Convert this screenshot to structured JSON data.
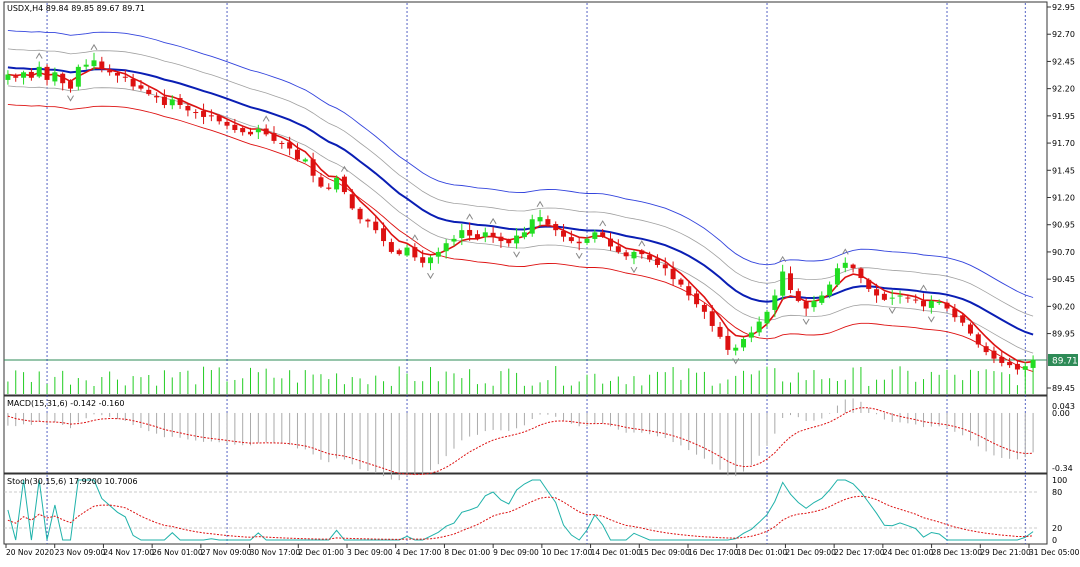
{
  "main_header": "USDX,H4  89.84 89.85 89.67 89.71",
  "macd_header": "MACD(15,31,6) -0.142 -0.160",
  "stoch_header": "Stoch(30,15,6) 17.9200 10.7006",
  "price_badge": "89.71",
  "colors": {
    "bull": "#22dd22",
    "bear": "#dd1111",
    "ema": "#dd1111",
    "mid": "#0a1eb4",
    "outer": "#3344dd",
    "inner": "#a0a0a0",
    "volume": "#22cc22",
    "signal": "#dd1111",
    "stoch_main": "#20b2aa",
    "stoch_signal": "#dd1111",
    "grid": "#2a3bb5"
  },
  "chart_data": [
    {
      "type": "candlestick",
      "symbol": "USDX",
      "timeframe": "H4",
      "ylim": [
        89.45,
        92.95
      ],
      "y_ticks": [
        "92.95",
        "92.70",
        "92.45",
        "92.20",
        "91.95",
        "91.70",
        "91.45",
        "91.20",
        "90.95",
        "90.70",
        "90.45",
        "90.20",
        "89.95",
        "89.71",
        "89.45"
      ],
      "x_ticks": [
        "20 Nov 2020",
        "23 Nov 09:00",
        "24 Nov 17:00",
        "26 Nov 01:00",
        "27 Nov 09:00",
        "30 Nov 17:00",
        "2 Dec 01:00",
        "3 Dec 09:00",
        "4 Dec 17:00",
        "8 Dec 01:00",
        "9 Dec 09:00",
        "10 Dec 17:00",
        "14 Dec 01:00",
        "15 Dec 09:00",
        "16 Dec 17:00",
        "18 Dec 01:00",
        "21 Dec 09:00",
        "22 Dec 17:00",
        "24 Dec 01:00",
        "28 Dec 13:00",
        "29 Dec 21:00",
        "31 Dec 05:00"
      ],
      "close_path": [
        92.33,
        92.3,
        92.35,
        92.3,
        92.4,
        92.28,
        92.35,
        92.25,
        92.2,
        92.4,
        92.42,
        92.46,
        92.38,
        92.35,
        92.32,
        92.3,
        92.22,
        92.2,
        92.15,
        92.12,
        92.05,
        92.1,
        92.05,
        92.0,
        91.98,
        91.94,
        91.95,
        91.9,
        91.86,
        91.82,
        91.8,
        91.78,
        91.83,
        91.78,
        91.72,
        91.7,
        91.65,
        91.55,
        91.55,
        91.4,
        91.3,
        91.28,
        91.38,
        91.25,
        91.1,
        91.0,
        90.98,
        90.9,
        90.8,
        90.7,
        90.68,
        90.74,
        90.65,
        90.6,
        90.65,
        90.7,
        90.78,
        90.82,
        90.9,
        90.85,
        90.82,
        90.88,
        90.84,
        90.8,
        90.78,
        90.85,
        90.88,
        91.0,
        91.02,
        90.95,
        90.9,
        90.84,
        90.8,
        90.78,
        90.82,
        90.88,
        90.84,
        90.75,
        90.7,
        90.66,
        90.7,
        90.68,
        90.63,
        90.58,
        90.55,
        90.45,
        90.4,
        90.3,
        90.22,
        90.15,
        90.02,
        89.92,
        89.8,
        89.82,
        89.9,
        89.96,
        90.06,
        90.15,
        90.3,
        90.52,
        90.35,
        90.25,
        90.18,
        90.25,
        90.3,
        90.4,
        90.55,
        90.6,
        90.55,
        90.46,
        90.36,
        90.3,
        90.26,
        90.28,
        90.3,
        90.28,
        90.26,
        90.2,
        90.25,
        90.24,
        90.18,
        90.1,
        90.05,
        89.95,
        89.85,
        89.78,
        89.72,
        89.68,
        89.66,
        89.62,
        89.65,
        89.71
      ],
      "indicators": [
        "close-line EMA",
        "middle band",
        "outer envelope upper",
        "outer envelope lower",
        "inner envelope upper",
        "inner envelope lower",
        "fractals",
        "volume"
      ]
    },
    {
      "type": "line",
      "title": "MACD(15,31,6) -0.142 -0.160",
      "ylim": [
        -0.34,
        0.043
      ],
      "y_ticks": [
        "0.043",
        "0.00",
        "-0.34"
      ],
      "series": [
        {
          "name": "MACD",
          "style": "histogram"
        },
        {
          "name": "Signal",
          "style": "dotted-line"
        }
      ]
    },
    {
      "type": "line",
      "title": "Stoch(30,15,6) 17.9200 10.7006",
      "ylim": [
        0,
        100
      ],
      "y_ticks": [
        "100",
        "80",
        "20",
        "0"
      ],
      "levels": [
        80,
        20
      ],
      "series": [
        {
          "name": "Main"
        },
        {
          "name": "Signal",
          "style": "dotted-line"
        }
      ]
    }
  ]
}
